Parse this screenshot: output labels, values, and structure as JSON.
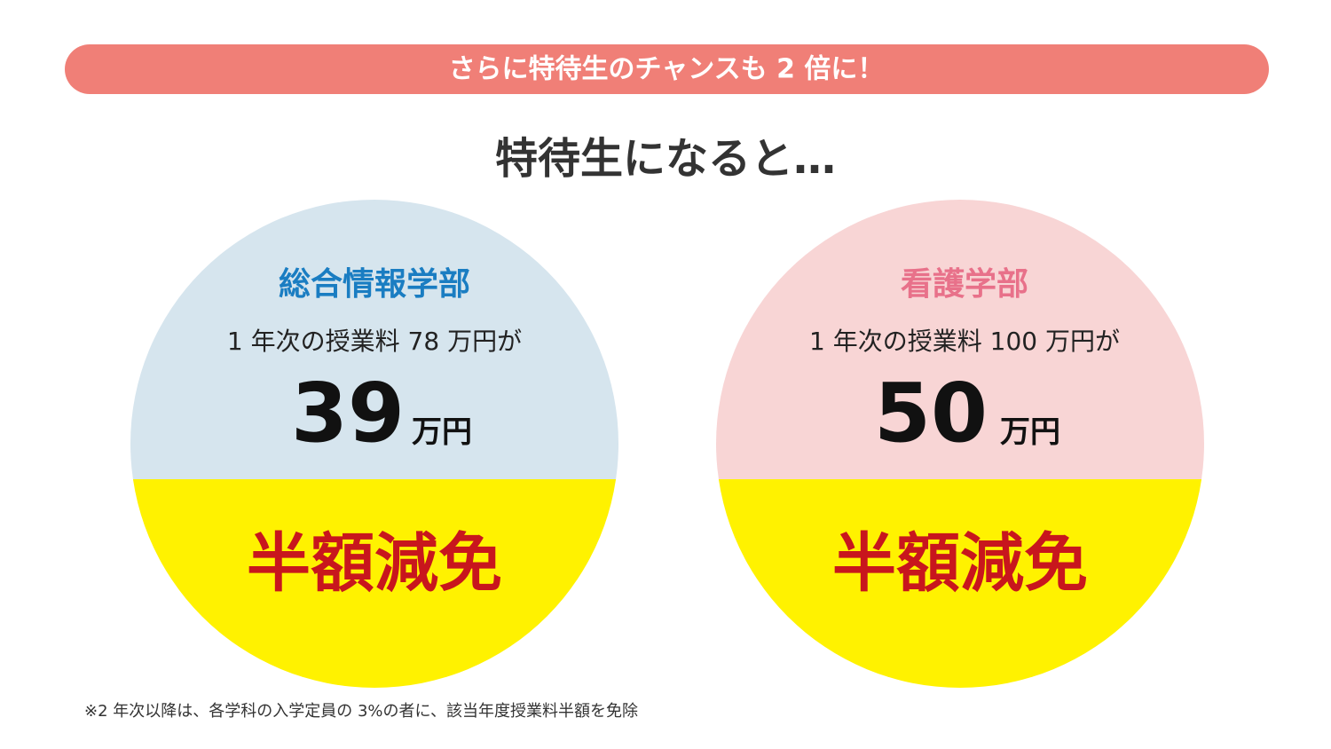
{
  "banner": {
    "text": "さらに特待生のチャンスも 2 倍に！"
  },
  "heading": "特待生になると…",
  "cards": [
    {
      "department": "総合情報学部",
      "tuition_line": "1 年次の授業料 78 万円が",
      "amount": "39",
      "unit": "万円",
      "badge": "半額減免"
    },
    {
      "department": "看護学部",
      "tuition_line": "1 年次の授業料 100 万円が",
      "amount": "50",
      "unit": "万円",
      "badge": "半額減免"
    }
  ],
  "footnote": "※2 年次以降は、各学科の入学定員の 3%の者に、該当年度授業料半額を免除"
}
